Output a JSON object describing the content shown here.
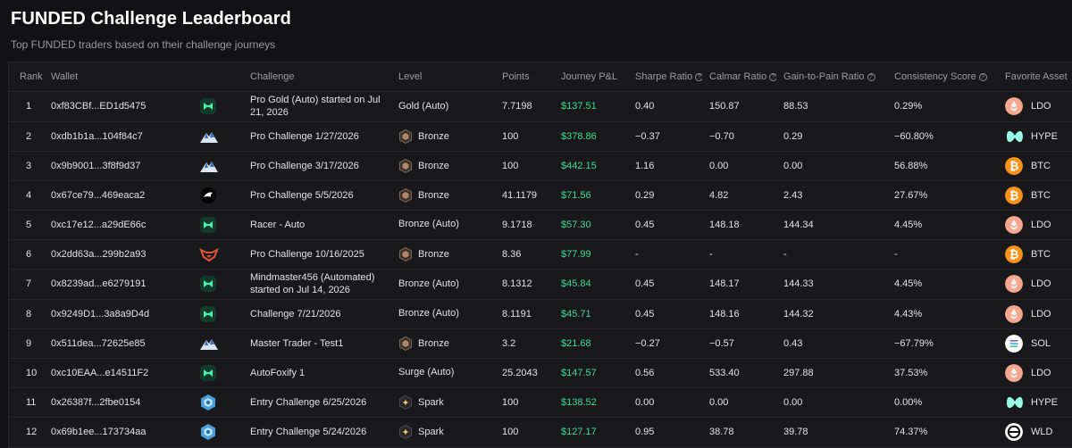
{
  "page": {
    "title": "FUNDED Challenge Leaderboard",
    "subtitle": "Top FUNDED traders based on their challenge journeys"
  },
  "columns": {
    "rank": "Rank",
    "wallet": "Wallet",
    "challenge": "Challenge",
    "level": "Level",
    "points": "Points",
    "pnl": "Journey P&L",
    "sharpe": "Sharpe Ratio",
    "calmar": "Calmar Ratio",
    "gain_to_pain": "Gain-to-Pain Ratio",
    "consistency": "Consistency Score",
    "asset": "Favorite Asset"
  },
  "help_glyph": "?",
  "colors": {
    "pnl_positive": "#3ddc97",
    "background": "#121214",
    "table_bg": "#19191c"
  },
  "rows": [
    {
      "rank": "1",
      "wallet": "0xf83CBf...ED1d5475",
      "logo": "funded-logo-icon",
      "challenge": "Pro Gold (Auto) started on Jul 21, 2026",
      "level": "Gold (Auto)",
      "level_badge": "",
      "points": "7.7198",
      "pnl": "$137.51",
      "sharpe": "0.40",
      "calmar": "150.87",
      "gtp": "88.53",
      "consistency": "0.29%",
      "asset": "LDO",
      "asset_icon": "ldo-icon"
    },
    {
      "rank": "2",
      "wallet": "0xdb1b1a...104f84c7",
      "logo": "mountain-logo-icon",
      "challenge": "Pro Challenge 1/27/2026",
      "level": "Bronze",
      "level_badge": "bronze-badge-icon",
      "points": "100",
      "pnl": "$378.86",
      "sharpe": "−0.37",
      "calmar": "−0.70",
      "gtp": "0.29",
      "consistency": "−60.80%",
      "asset": "HYPE",
      "asset_icon": "hype-icon"
    },
    {
      "rank": "3",
      "wallet": "0x9b9001...3f8f9d37",
      "logo": "mountain-logo-icon",
      "challenge": "Pro Challenge 3/17/2026",
      "level": "Bronze",
      "level_badge": "bronze-badge-icon",
      "points": "100",
      "pnl": "$442.15",
      "sharpe": "1.16",
      "calmar": "0.00",
      "gtp": "0.00",
      "consistency": "56.88%",
      "asset": "BTC",
      "asset_icon": "btc-icon"
    },
    {
      "rank": "4",
      "wallet": "0x67ce79...469eaca2",
      "logo": "bird-logo-icon",
      "challenge": "Pro Challenge 5/5/2026",
      "level": "Bronze",
      "level_badge": "bronze-badge-icon",
      "points": "41.1179",
      "pnl": "$71.56",
      "sharpe": "0.29",
      "calmar": "4.82",
      "gtp": "2.43",
      "consistency": "27.67%",
      "asset": "BTC",
      "asset_icon": "btc-icon"
    },
    {
      "rank": "5",
      "wallet": "0xc17e12...a29dE66c",
      "logo": "funded-logo-icon",
      "challenge": "Racer - Auto",
      "level": "Bronze (Auto)",
      "level_badge": "",
      "points": "9.1718",
      "pnl": "$57.30",
      "sharpe": "0.45",
      "calmar": "148.18",
      "gtp": "144.34",
      "consistency": "4.45%",
      "asset": "LDO",
      "asset_icon": "ldo-icon"
    },
    {
      "rank": "6",
      "wallet": "0x2dd63a...299b2a93",
      "logo": "fox-logo-icon",
      "challenge": "Pro Challenge 10/16/2025",
      "level": "Bronze",
      "level_badge": "bronze-badge-icon",
      "points": "8.36",
      "pnl": "$77.99",
      "sharpe": "-",
      "calmar": "-",
      "gtp": "-",
      "consistency": "-",
      "asset": "BTC",
      "asset_icon": "btc-icon"
    },
    {
      "rank": "7",
      "wallet": "0x8239ad...e6279191",
      "logo": "funded-logo-icon",
      "challenge": "Mindmaster456 (Automated) started on Jul 14, 2026",
      "level": "Bronze (Auto)",
      "level_badge": "",
      "points": "8.1312",
      "pnl": "$45.84",
      "sharpe": "0.45",
      "calmar": "148.17",
      "gtp": "144.33",
      "consistency": "4.45%",
      "asset": "LDO",
      "asset_icon": "ldo-icon"
    },
    {
      "rank": "8",
      "wallet": "0x9249D1...3a8a9D4d",
      "logo": "funded-logo-icon",
      "challenge": "Challenge 7/21/2026",
      "level": "Bronze (Auto)",
      "level_badge": "",
      "points": "8.1191",
      "pnl": "$45.71",
      "sharpe": "0.45",
      "calmar": "148.16",
      "gtp": "144.32",
      "consistency": "4.43%",
      "asset": "LDO",
      "asset_icon": "ldo-icon"
    },
    {
      "rank": "9",
      "wallet": "0x511dea...72625e85",
      "logo": "mountain-logo-icon",
      "challenge": "Master Trader - Test1",
      "level": "Bronze",
      "level_badge": "bronze-badge-icon",
      "points": "3.2",
      "pnl": "$21.68",
      "sharpe": "−0.27",
      "calmar": "−0.57",
      "gtp": "0.43",
      "consistency": "−67.79%",
      "asset": "SOL",
      "asset_icon": "sol-icon"
    },
    {
      "rank": "10",
      "wallet": "0xc10EAA...e14511F2",
      "logo": "funded-logo-icon",
      "challenge": "AutoFoxify 1",
      "level": "Surge (Auto)",
      "level_badge": "",
      "points": "25.2043",
      "pnl": "$147.57",
      "sharpe": "0.56",
      "calmar": "533.40",
      "gtp": "297.88",
      "consistency": "37.53%",
      "asset": "LDO",
      "asset_icon": "ldo-icon"
    },
    {
      "rank": "11",
      "wallet": "0x26387f...2fbe0154",
      "logo": "gem-logo-icon",
      "challenge": "Entry Challenge 6/25/2026",
      "level": "Spark",
      "level_badge": "spark-badge-icon",
      "points": "100",
      "pnl": "$138.52",
      "sharpe": "0.00",
      "calmar": "0.00",
      "gtp": "0.00",
      "consistency": "0.00%",
      "asset": "HYPE",
      "asset_icon": "hype-icon"
    },
    {
      "rank": "12",
      "wallet": "0x69b1ee...173734aa",
      "logo": "gem-logo-icon",
      "challenge": "Entry Challenge 5/24/2026",
      "level": "Spark",
      "level_badge": "spark-badge-icon",
      "points": "100",
      "pnl": "$127.17",
      "sharpe": "0.95",
      "calmar": "38.78",
      "gtp": "39.78",
      "consistency": "74.37%",
      "asset": "WLD",
      "asset_icon": "wld-icon"
    }
  ]
}
